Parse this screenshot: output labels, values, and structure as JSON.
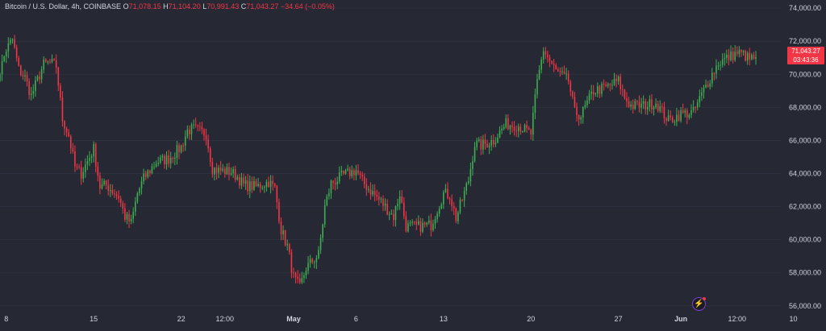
{
  "header": {
    "symbol": "Bitcoin / U.S. Dollar, 4h, COINBASE",
    "o_label": "O",
    "o_value": "71,078.15",
    "h_label": "H",
    "h_value": "71,104.20",
    "l_label": "L",
    "l_value": "70,991.43",
    "c_label": "C",
    "c_value": "71,043.27",
    "change": "−34.64 (−0.05%)"
  },
  "price_tag": {
    "price": "71,043.27",
    "countdown": "03:43:36"
  },
  "colors": {
    "background": "#262833",
    "up": "#3dae52",
    "down": "#f23645",
    "text": "#d1d4dc",
    "grid": "#2e3140"
  },
  "chart_data": {
    "type": "candlestick",
    "y_axis": {
      "range": [
        55600,
        74300
      ],
      "ticks": [
        56000,
        58000,
        60000,
        62000,
        64000,
        66000,
        68000,
        70000,
        72000,
        74000
      ],
      "tick_labels": [
        "56,000.00",
        "58,000.00",
        "60,000.00",
        "62,000.00",
        "64,000.00",
        "66,000.00",
        "68,000.00",
        "70,000.00",
        "72,000.00",
        "74,000.00"
      ]
    },
    "x_axis": {
      "range": [
        "2024-04-07T12:00",
        "2024-06-09T00:00"
      ],
      "ticks": [
        "2024-04-08",
        "2024-04-15",
        "2024-04-22",
        "2024-04-25T12:00",
        "2024-05-01",
        "2024-05-06",
        "2024-05-13",
        "2024-05-20",
        "2024-05-27",
        "2024-06-01",
        "2024-06-05T12:00",
        "2024-06-10"
      ],
      "tick_labels": [
        "8",
        "15",
        "22",
        "12:00",
        "May",
        "6",
        "13",
        "20",
        "27",
        "Jun",
        "12:00",
        "10"
      ],
      "bold_ticks": [
        "May",
        "Jun"
      ]
    },
    "last_price": 71043.27,
    "series": [
      {
        "interval": "4h",
        "points": [
          [
            "2024-04-07",
            68900
          ],
          [
            "2024-04-08",
            71500
          ],
          [
            "2024-04-08T12:00",
            72100
          ],
          [
            "2024-04-09",
            70300
          ],
          [
            "2024-04-09T12:00",
            69800
          ],
          [
            "2024-04-10",
            68700
          ],
          [
            "2024-04-11",
            70600
          ],
          [
            "2024-04-11T12:00",
            70700
          ],
          [
            "2024-04-12",
            70500
          ],
          [
            "2024-04-12T12:00",
            67300
          ],
          [
            "2024-04-13",
            66300
          ],
          [
            "2024-04-13T12:00",
            64400
          ],
          [
            "2024-04-14",
            64000
          ],
          [
            "2024-04-15",
            65500
          ],
          [
            "2024-04-15T12:00",
            63200
          ],
          [
            "2024-04-16",
            63300
          ],
          [
            "2024-04-17",
            62600
          ],
          [
            "2024-04-17T12:00",
            61400
          ],
          [
            "2024-04-18",
            61000
          ],
          [
            "2024-04-18T12:00",
            62800
          ],
          [
            "2024-04-19",
            63700
          ],
          [
            "2024-04-20",
            64700
          ],
          [
            "2024-04-21",
            64900
          ],
          [
            "2024-04-22",
            65600
          ],
          [
            "2024-04-22T12:00",
            66600
          ],
          [
            "2024-04-23",
            66700
          ],
          [
            "2024-04-24",
            66400
          ],
          [
            "2024-04-24T12:00",
            64300
          ],
          [
            "2024-04-25",
            64200
          ],
          [
            "2024-04-26",
            64100
          ],
          [
            "2024-04-26T12:00",
            63800
          ],
          [
            "2024-04-27",
            63300
          ],
          [
            "2024-04-28",
            63200
          ],
          [
            "2024-04-29",
            63500
          ],
          [
            "2024-04-29T12:00",
            63100
          ],
          [
            "2024-04-30",
            60600
          ],
          [
            "2024-04-30T12:00",
            59600
          ],
          [
            "2024-05-01",
            57700
          ],
          [
            "2024-05-01T12:00",
            57100
          ],
          [
            "2024-05-02",
            58300
          ],
          [
            "2024-05-03",
            59100
          ],
          [
            "2024-05-03T12:00",
            62000
          ],
          [
            "2024-05-04",
            63400
          ],
          [
            "2024-05-05",
            63900
          ],
          [
            "2024-05-06",
            64200
          ],
          [
            "2024-05-06T12:00",
            63500
          ],
          [
            "2024-05-07",
            63100
          ],
          [
            "2024-05-08",
            62300
          ],
          [
            "2024-05-09",
            61400
          ],
          [
            "2024-05-09T12:00",
            62800
          ],
          [
            "2024-05-10",
            60800
          ],
          [
            "2024-05-11",
            60800
          ],
          [
            "2024-05-12",
            60900
          ],
          [
            "2024-05-13",
            62800
          ],
          [
            "2024-05-13T12:00",
            62700
          ],
          [
            "2024-05-14",
            61300
          ],
          [
            "2024-05-15",
            63600
          ],
          [
            "2024-05-15T12:00",
            65800
          ],
          [
            "2024-05-16",
            65700
          ],
          [
            "2024-05-17",
            66000
          ],
          [
            "2024-05-18",
            67000
          ],
          [
            "2024-05-19",
            66900
          ],
          [
            "2024-05-20",
            66400
          ],
          [
            "2024-05-20T12:00",
            69500
          ],
          [
            "2024-05-21",
            71500
          ],
          [
            "2024-05-21T12:00",
            70800
          ],
          [
            "2024-05-22",
            70200
          ],
          [
            "2024-05-23",
            69600
          ],
          [
            "2024-05-23T12:00",
            67700
          ],
          [
            "2024-05-24",
            67500
          ],
          [
            "2024-05-25",
            69000
          ],
          [
            "2024-05-26",
            69200
          ],
          [
            "2024-05-27",
            69600
          ],
          [
            "2024-05-27T12:00",
            68600
          ],
          [
            "2024-05-28",
            68100
          ],
          [
            "2024-05-29",
            68100
          ],
          [
            "2024-05-30",
            68300
          ],
          [
            "2024-05-31",
            67200
          ],
          [
            "2024-06-01",
            67600
          ],
          [
            "2024-06-02",
            67700
          ],
          [
            "2024-06-03",
            69300
          ],
          [
            "2024-06-04",
            70700
          ],
          [
            "2024-06-05",
            71100
          ],
          [
            "2024-06-05T12:00",
            71300
          ],
          [
            "2024-06-06",
            71200
          ],
          [
            "2024-06-06T12:00",
            70900
          ],
          [
            "2024-06-07",
            71043.27
          ]
        ]
      }
    ]
  }
}
